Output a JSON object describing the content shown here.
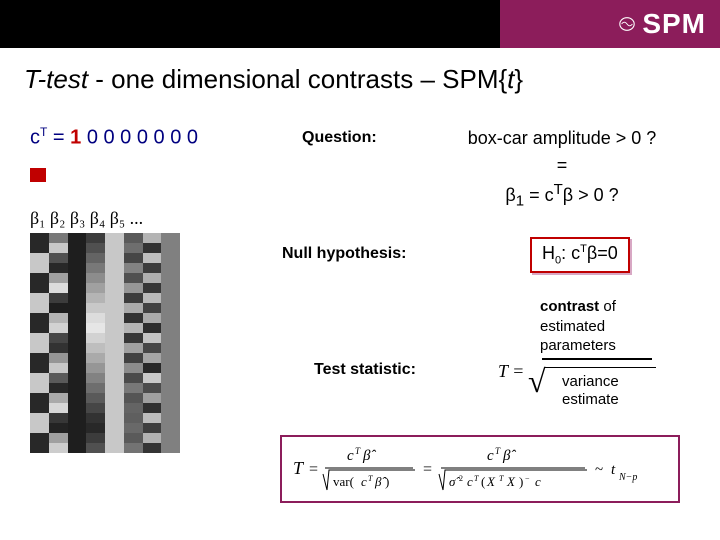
{
  "header": {
    "logo_text": "SPM"
  },
  "title": {
    "t_test": "T-test",
    "middle": " - one dimensional contrasts – SPM{",
    "t_var": "t",
    "close": "}"
  },
  "left": {
    "ct_prefix": "c",
    "ct_sup": "T",
    "ct_eq": " = ",
    "ct_one": "1",
    "ct_zeros": " 0 0 0 0 0 0 0",
    "betas": "β₁ β₂ β₃ β₄ β₅ ...",
    "design_matrix": {
      "cols": 8,
      "rows": 22,
      "gray_columns": [
        [
          40,
          40,
          200,
          200,
          40,
          40,
          200,
          200,
          40,
          40,
          200,
          200,
          40,
          40,
          200,
          200,
          40,
          40,
          200,
          200,
          40,
          40
        ],
        [
          120,
          200,
          80,
          40,
          160,
          220,
          60,
          30,
          180,
          210,
          70,
          50,
          150,
          200,
          90,
          40,
          170,
          215,
          55,
          35,
          160,
          205
        ],
        [
          30,
          30,
          30,
          30,
          30,
          30,
          30,
          30,
          30,
          30,
          30,
          30,
          30,
          30,
          30,
          30,
          30,
          30,
          30,
          30,
          30,
          30
        ],
        [
          60,
          80,
          100,
          120,
          140,
          160,
          180,
          200,
          220,
          230,
          210,
          190,
          170,
          150,
          130,
          110,
          90,
          70,
          50,
          40,
          60,
          80
        ],
        [
          200,
          200,
          200,
          200,
          200,
          200,
          200,
          200,
          200,
          200,
          200,
          200,
          200,
          200,
          200,
          200,
          200,
          200,
          200,
          200,
          200,
          200
        ],
        [
          90,
          110,
          70,
          130,
          80,
          150,
          60,
          170,
          50,
          180,
          55,
          160,
          65,
          140,
          75,
          120,
          85,
          100,
          95,
          105,
          90,
          115
        ],
        [
          180,
          50,
          190,
          60,
          175,
          55,
          185,
          65,
          170,
          45,
          195,
          70,
          165,
          40,
          200,
          75,
          160,
          48,
          188,
          62,
          178,
          52
        ],
        [
          128,
          128,
          128,
          128,
          128,
          128,
          128,
          128,
          128,
          128,
          128,
          128,
          128,
          128,
          128,
          128,
          128,
          128,
          128,
          128,
          128,
          128
        ]
      ]
    }
  },
  "question": {
    "label": "Question:",
    "line1": "box-car amplitude > 0 ?",
    "line2": "=",
    "line3_pre": "β",
    "line3_sub": "1",
    "line3_mid": " = c",
    "line3_sup": "T",
    "line3_post": "β > 0 ?"
  },
  "null_hyp": {
    "label": "Null hypothesis:",
    "h0_pre": "H",
    "h0_sub": "0",
    "h0_mid": ": c",
    "h0_sup": "T",
    "h0_post": "β=0"
  },
  "contrast_block": {
    "l1a": "contrast",
    "l1b": " of",
    "l2": "estimated",
    "l3": "parameters"
  },
  "test_stat": {
    "label": "Test statistic:",
    "T_eq": "T =",
    "var_l1": "variance",
    "var_l2": "estimate"
  },
  "formula": {
    "text": "T = cᵀβ̂ / √var(cᵀβ̂) = cᵀβ̂ / √(σ̂² cᵀ(XᵀX)⁻ c) ~ t_{N−p}",
    "border_color": "#8c1d5b"
  },
  "colors": {
    "purple": "#8c1d5b",
    "red": "#c00000",
    "navy": "#000080",
    "black": "#000000",
    "white": "#ffffff"
  }
}
